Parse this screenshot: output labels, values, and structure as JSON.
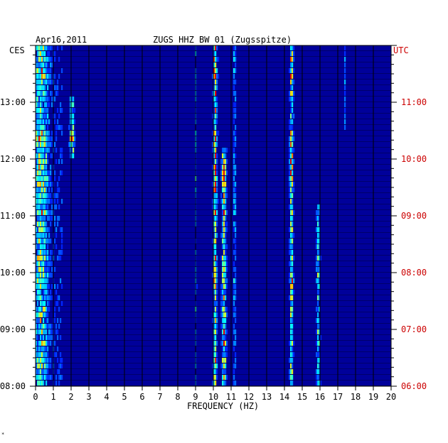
{
  "chart_data": {
    "type": "heatmap",
    "date": "Apr16,2011",
    "title": "ZUGS HHZ BW 01 (Zugsspitze)",
    "left_tz": "CES",
    "right_tz": "UTC",
    "xlabel": "FREQUENCY (HZ)",
    "xlim": [
      0,
      20
    ],
    "x_ticks": [
      "0",
      "1",
      "2",
      "3",
      "4",
      "5",
      "6",
      "7",
      "8",
      "9",
      "10",
      "11",
      "12",
      "13",
      "14",
      "15",
      "16",
      "17",
      "18",
      "19",
      "20"
    ],
    "left_ticks": [
      "13:00",
      "12:00",
      "11:00",
      "10:00",
      "09:00",
      "08:00"
    ],
    "right_ticks": [
      "11:00",
      "10:00",
      "09:00",
      "08:00",
      "07:00",
      "06:00"
    ],
    "time_range_ces": [
      "08:00",
      "14:00"
    ],
    "rows": 60,
    "colors": {
      "background": "#00009a",
      "grid": "#000000",
      "right_axis": "#cc0000"
    },
    "spectral_lines_hz": [
      {
        "freq": 2.05,
        "strength": "strong, 12:00–13:00 CES"
      },
      {
        "freq": 10.1,
        "strength": "strong, all hours"
      },
      {
        "freq": 10.6,
        "strength": "strong, 08:00–12:00 CES"
      },
      {
        "freq": 11.2,
        "strength": "medium"
      },
      {
        "freq": 14.4,
        "strength": "strong"
      },
      {
        "freq": 15.9,
        "strength": "medium, 08:00–11:00 CES"
      },
      {
        "freq": 9.0,
        "strength": "weak"
      },
      {
        "freq": 17.4,
        "strength": "weak"
      }
    ]
  }
}
